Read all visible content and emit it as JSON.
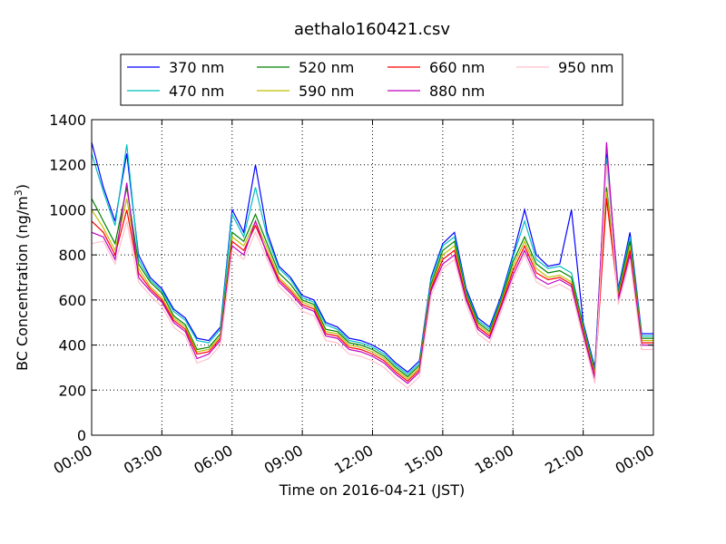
{
  "chart_data": {
    "type": "line",
    "title": "aethalo160421.csv",
    "xlabel": "Time on 2016-04-21 (JST)",
    "ylabel": "BC Concentration (ng/m",
    "ylabel_sup": "3",
    "ylabel_tail": ")",
    "xlim": [
      "00:00",
      "24:00"
    ],
    "x_ticks": [
      "00:00",
      "03:00",
      "06:00",
      "09:00",
      "12:00",
      "15:00",
      "18:00",
      "21:00",
      "00:00"
    ],
    "ylim": [
      0,
      1400
    ],
    "y_ticks": [
      0,
      200,
      400,
      600,
      800,
      1000,
      1200,
      1400
    ],
    "grid": true,
    "legend_position": "top-center",
    "x_hours": [
      0,
      0.5,
      1,
      1.5,
      2,
      2.5,
      3,
      3.5,
      4,
      4.5,
      5,
      5.5,
      6,
      6.5,
      7,
      7.5,
      8,
      8.5,
      9,
      9.5,
      10,
      10.5,
      11,
      11.5,
      12,
      12.5,
      13,
      13.5,
      14,
      14.5,
      15,
      15.5,
      16,
      16.5,
      17,
      17.5,
      18,
      18.5,
      19,
      19.5,
      20,
      20.5,
      21,
      21.5,
      22,
      22.5,
      23,
      23.5,
      24
    ],
    "series": [
      {
        "name": "370 nm",
        "color": "#0000ff",
        "values": [
          1300,
          1100,
          950,
          1250,
          800,
          700,
          650,
          560,
          520,
          430,
          420,
          480,
          1000,
          900,
          1200,
          900,
          750,
          700,
          620,
          600,
          500,
          480,
          430,
          420,
          400,
          370,
          320,
          280,
          330,
          700,
          850,
          900,
          650,
          520,
          480,
          620,
          800,
          1000,
          800,
          750,
          760,
          1000,
          500,
          300,
          1250,
          650,
          900,
          450,
          450
        ]
      },
      {
        "name": "470 nm",
        "color": "#00bfbf",
        "values": [
          1250,
          1080,
          930,
          1290,
          780,
          690,
          640,
          550,
          510,
          420,
          410,
          470,
          980,
          880,
          1100,
          880,
          740,
          690,
          610,
          590,
          490,
          470,
          420,
          410,
          390,
          360,
          310,
          270,
          320,
          690,
          840,
          880,
          640,
          510,
          470,
          610,
          790,
          950,
          780,
          740,
          750,
          720,
          490,
          290,
          1230,
          640,
          880,
          440,
          440
        ]
      },
      {
        "name": "520 nm",
        "color": "#008000",
        "values": [
          1050,
          950,
          850,
          1100,
          760,
          680,
          630,
          530,
          490,
          380,
          390,
          450,
          900,
          860,
          980,
          850,
          720,
          670,
          600,
          580,
          470,
          460,
          410,
          400,
          380,
          350,
          300,
          260,
          310,
          670,
          820,
          860,
          630,
          500,
          460,
          600,
          770,
          880,
          760,
          720,
          730,
          700,
          480,
          280,
          1100,
          630,
          860,
          430,
          430
        ]
      },
      {
        "name": "590 nm",
        "color": "#bfbf00",
        "values": [
          1000,
          920,
          820,
          1050,
          740,
          660,
          610,
          520,
          480,
          370,
          380,
          440,
          880,
          840,
          950,
          830,
          700,
          650,
          590,
          570,
          460,
          450,
          400,
          390,
          370,
          340,
          290,
          250,
          300,
          660,
          800,
          840,
          620,
          490,
          450,
          590,
          750,
          860,
          740,
          700,
          710,
          680,
          470,
          270,
          1080,
          620,
          840,
          420,
          420
        ]
      },
      {
        "name": "660 nm",
        "color": "#ff0000",
        "values": [
          950,
          900,
          800,
          1000,
          720,
          650,
          600,
          510,
          470,
          360,
          370,
          430,
          860,
          820,
          930,
          810,
          690,
          640,
          580,
          560,
          450,
          440,
          390,
          380,
          360,
          330,
          280,
          240,
          290,
          650,
          780,
          820,
          610,
          480,
          440,
          580,
          730,
          840,
          720,
          690,
          700,
          670,
          460,
          260,
          1050,
          610,
          820,
          410,
          410
        ]
      },
      {
        "name": "880 nm",
        "color": "#bf00bf",
        "values": [
          900,
          880,
          780,
          1120,
          700,
          640,
          590,
          500,
          460,
          340,
          360,
          420,
          840,
          800,
          950,
          800,
          680,
          630,
          570,
          550,
          440,
          430,
          380,
          370,
          350,
          320,
          270,
          230,
          280,
          640,
          760,
          800,
          600,
          470,
          430,
          570,
          710,
          820,
          700,
          670,
          690,
          660,
          450,
          250,
          1300,
          600,
          800,
          400,
          400
        ]
      },
      {
        "name": "950 nm",
        "color": "#ffc0cb",
        "values": [
          850,
          860,
          760,
          950,
          680,
          620,
          570,
          480,
          440,
          320,
          340,
          400,
          820,
          780,
          900,
          780,
          660,
          610,
          550,
          530,
          420,
          410,
          360,
          350,
          330,
          300,
          250,
          210,
          260,
          620,
          740,
          780,
          580,
          450,
          410,
          550,
          690,
          800,
          680,
          650,
          670,
          640,
          430,
          230,
          1200,
          580,
          780,
          380,
          380
        ]
      }
    ]
  }
}
